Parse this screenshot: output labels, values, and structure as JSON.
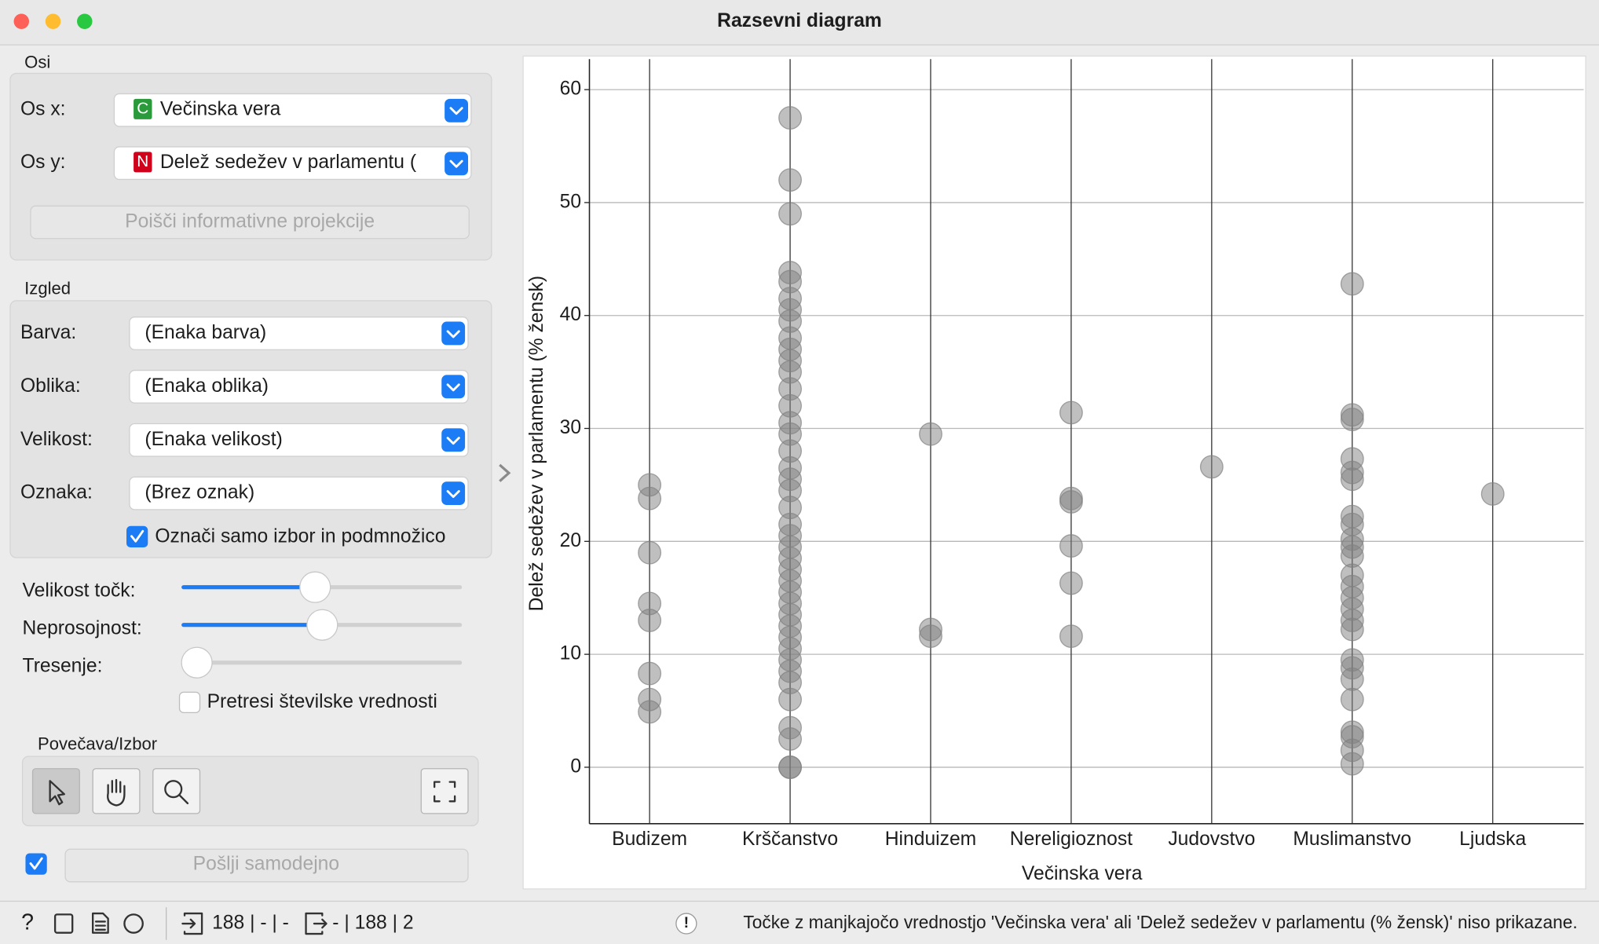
{
  "window": {
    "title": "Razsevni diagram"
  },
  "axes_box": {
    "title": "Osi",
    "x_label": "Os x:",
    "x_badge": "C",
    "x_value": "Večinska vera",
    "y_label": "Os y:",
    "y_badge": "N",
    "y_value": "Delež sedežev v parlamentu (",
    "button": "Poišči informativne projekcije"
  },
  "appearance_box": {
    "title": "Izgled",
    "rows": [
      {
        "label": "Barva:",
        "value": "(Enaka barva)"
      },
      {
        "label": "Oblika:",
        "value": "(Enaka oblika)"
      },
      {
        "label": "Velikost:",
        "value": "(Enaka velikost)"
      },
      {
        "label": "Oznaka:",
        "value": "(Brez oznak)"
      }
    ],
    "checkbox": "Označi samo izbor in podmnožico"
  },
  "sliders": {
    "labels": [
      "Velikost točk:",
      "Neprosojnost:",
      "Tresenje:"
    ],
    "checkbox": "Pretresi številske vrednosti"
  },
  "zoom_box": {
    "title": "Povečava/Izbor"
  },
  "send_button": "Pošlji samodejno",
  "status_bar": {
    "input": "188 | - | -",
    "output": "- | 188 | 2",
    "warning": "Točke z manjkajočo vrednostjo 'Večinska vera' ali 'Delež sedežev v parlamentu (% žensk)' niso prikazane."
  },
  "chart_data": {
    "type": "scatter",
    "x_label": "Večinska vera",
    "y_label": "Delež sedežev v parlamentu (% žensk)",
    "categories": [
      "Budizem",
      "Krščanstvo",
      "Hinduizem",
      "Nereligioznost",
      "Judovstvo",
      "Muslimanstvo",
      "Ljudska"
    ],
    "values": [
      [
        25,
        23.8,
        19,
        14.5,
        13,
        8.3,
        6,
        4.9
      ],
      [
        57.5,
        52,
        49,
        43.8,
        43,
        41.5,
        40.5,
        39.5,
        38,
        37,
        36,
        35,
        33.5,
        32,
        30.5,
        29.5,
        28,
        26.5,
        25.5,
        24.5,
        23,
        21.5,
        20.5,
        19.5,
        18.5,
        17.5,
        16.5,
        15.5,
        14.5,
        13.5,
        12.5,
        11.5,
        10.5,
        9.5,
        8.5,
        7.5,
        6,
        3.5,
        2.5,
        0,
        0
      ],
      [
        29.5,
        12.2,
        11.6
      ],
      [
        31.4,
        23.8,
        23.5,
        19.6,
        16.3,
        11.6
      ],
      [
        26.6
      ],
      [
        42.8,
        31.2,
        30.8,
        27.3,
        26.1,
        25.5,
        22.2,
        21.5,
        20.2,
        19.5,
        18.7,
        17,
        16,
        15,
        14,
        13,
        12.2,
        9.5,
        8.8,
        7.8,
        6,
        3.1,
        2.7,
        1.5,
        0.3
      ],
      [
        24.2
      ]
    ],
    "color": "#808080",
    "ylim": [
      -5,
      62.7
    ],
    "yticks": [
      0,
      10,
      20,
      30,
      40,
      50,
      60
    ],
    "grid": true
  }
}
